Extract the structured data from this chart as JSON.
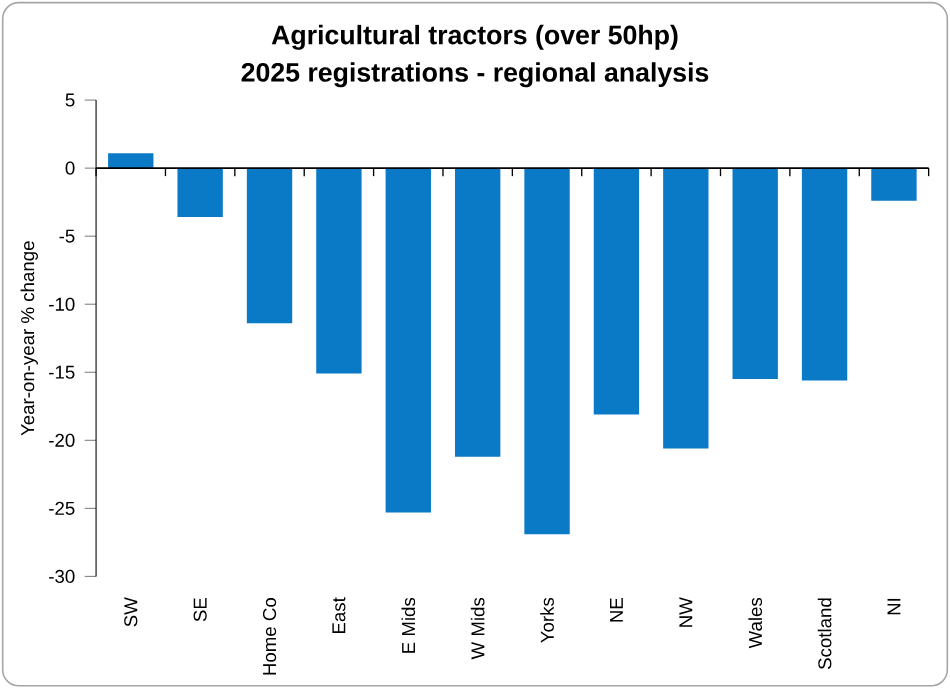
{
  "chart_data": {
    "type": "bar",
    "title": "Agricultural tractors (over 50hp)",
    "subtitle": "2025 registrations - regional analysis",
    "ylabel": "Year-on-year % change",
    "categories": [
      "SW",
      "SE",
      "Home Co",
      "East",
      "E Mids",
      "W Mids",
      "Yorks",
      "NE",
      "NW",
      "Wales",
      "Scotland",
      "NI"
    ],
    "values": [
      1.1,
      -3.6,
      -11.4,
      -15.1,
      -25.3,
      -21.2,
      -26.9,
      -18.1,
      -20.6,
      -15.5,
      -15.6,
      -2.4
    ],
    "color": "#0a79c6",
    "ylim": [
      -30,
      5
    ],
    "yticks": [
      5,
      0,
      -5,
      -10,
      -15,
      -20,
      -25,
      -30
    ]
  }
}
